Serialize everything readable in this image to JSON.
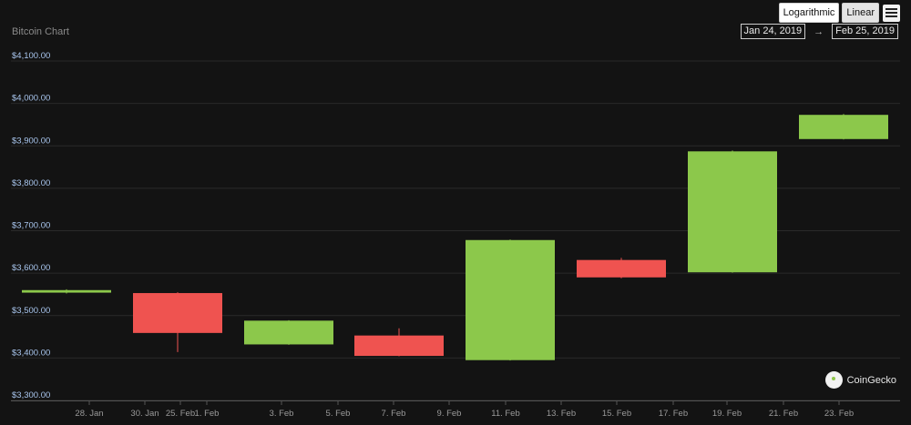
{
  "toolbar": {
    "logarithmic_label": "Logarithmic",
    "linear_label": "Linear",
    "range_from": "Jan 24, 2019",
    "range_arrow": "→",
    "range_to": "Feb 25, 2019"
  },
  "brand": {
    "name": "CoinGecko"
  },
  "colors": {
    "background": "#131313",
    "up": "#8cc84b",
    "down": "#ef5350",
    "grid": "#2a2a2a",
    "ytick": "#a9c6ee"
  },
  "chart_data": {
    "type": "candlestick",
    "title": "Bitcoin Chart",
    "ylim": [
      3300,
      4100
    ],
    "y_ticks": [
      3300,
      3400,
      3500,
      3600,
      3700,
      3800,
      3900,
      4000,
      4100
    ],
    "y_tick_labels": [
      "$3,300.00",
      "$3,400.00",
      "$3,500.00",
      "$3,600.00",
      "$3,700.00",
      "$3,800.00",
      "$3,900.00",
      "$4,000.00",
      "$4,100.00"
    ],
    "x_tick_labels": [
      "28. Jan",
      "30. Jan",
      "25. Feb",
      "1. Feb",
      "3. Feb",
      "5. Feb",
      "7. Feb",
      "9. Feb",
      "11. Feb",
      "13. Feb",
      "15. Feb",
      "17. Feb",
      "19. Feb",
      "21. Feb",
      "23. Feb"
    ],
    "grid": true,
    "candles": [
      {
        "open": 3554,
        "close": 3560,
        "high": 3562,
        "low": 3552
      },
      {
        "open": 3553,
        "close": 3459,
        "high": 3555,
        "low": 3414
      },
      {
        "open": 3432,
        "close": 3488,
        "high": 3489,
        "low": 3431
      },
      {
        "open": 3453,
        "close": 3405,
        "high": 3470,
        "low": 3404
      },
      {
        "open": 3395,
        "close": 3678,
        "high": 3679,
        "low": 3394
      },
      {
        "open": 3631,
        "close": 3590,
        "high": 3636,
        "low": 3588
      },
      {
        "open": 3602,
        "close": 3887,
        "high": 3889,
        "low": 3601
      },
      {
        "open": 3916,
        "close": 3973,
        "high": 3975,
        "low": 3915
      }
    ]
  }
}
